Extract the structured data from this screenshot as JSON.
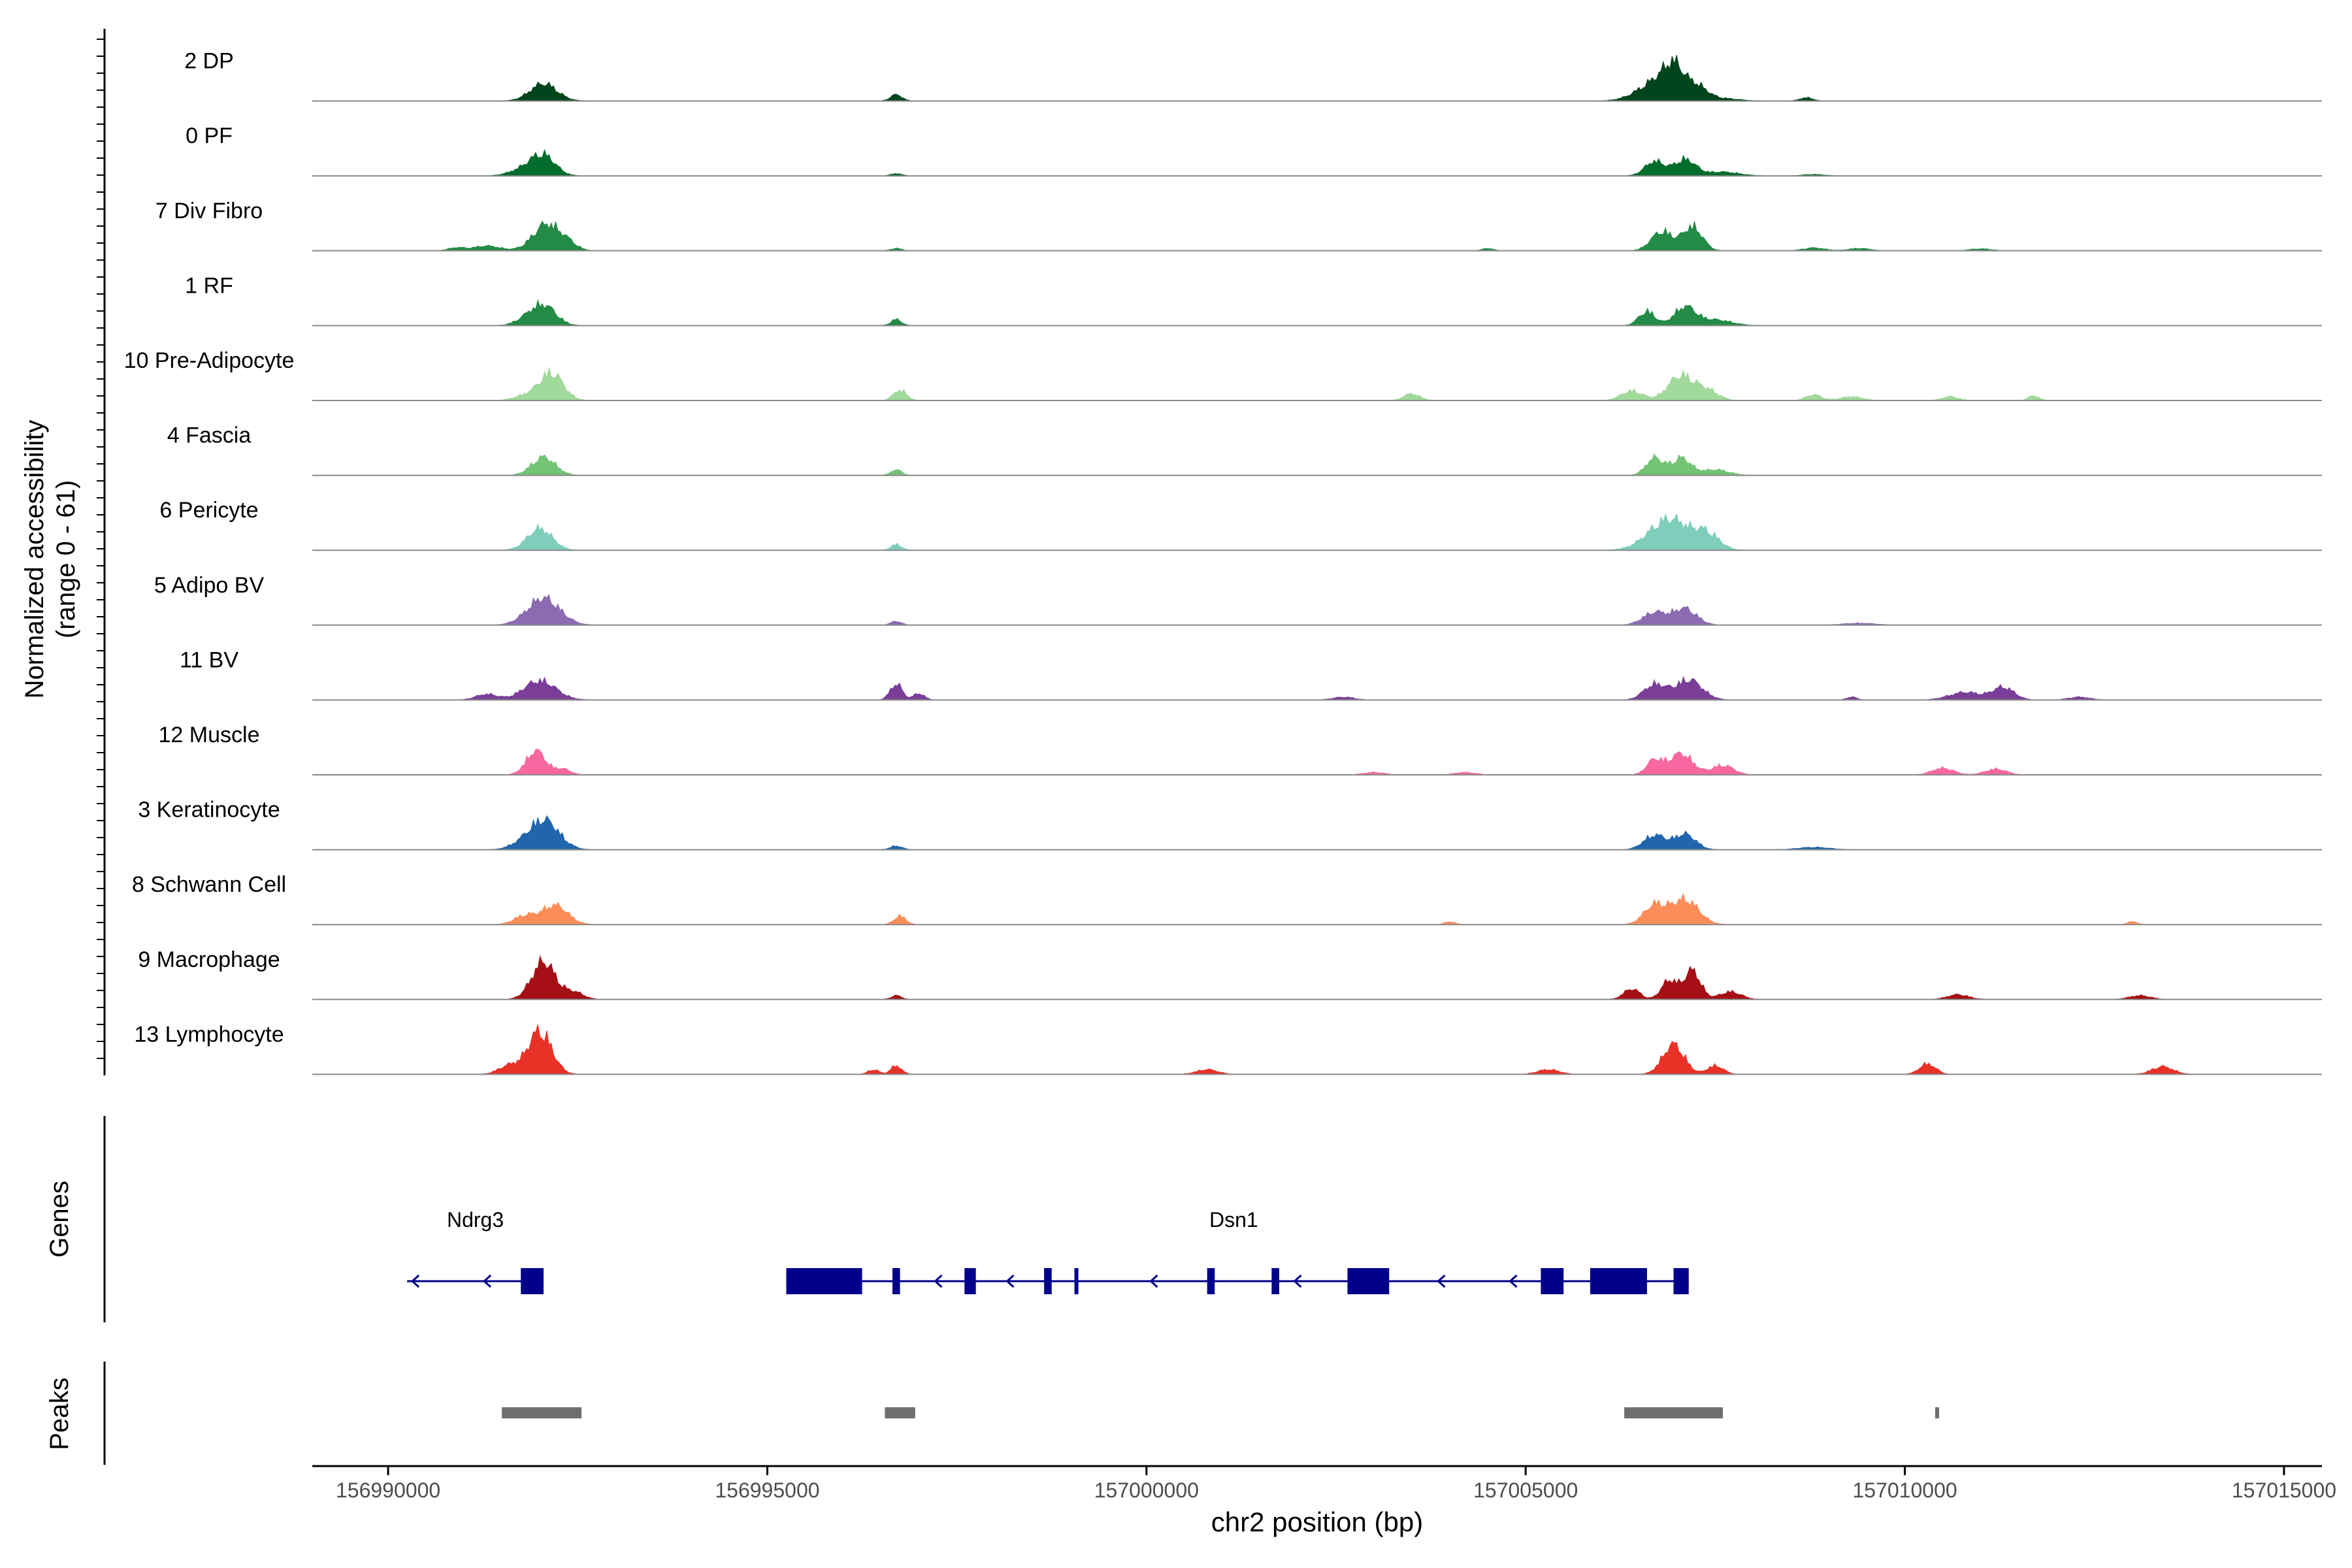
{
  "chart_data": {
    "type": "area",
    "title": "",
    "xlabel": "chr2 position (bp)",
    "ylabel": "Normalized accessibility",
    "ylabel_range": "(range 0 - 61)",
    "xlim": [
      156989000,
      157015500
    ],
    "ylim": [
      0,
      61
    ],
    "x_ticks": [
      156990000,
      156995000,
      157000000,
      157005000,
      157010000,
      157015000
    ],
    "x_tick_labels": [
      "156990000",
      "156995000",
      "157000000",
      "157005000",
      "157010000",
      "157015000"
    ],
    "series": [
      {
        "name": "2 DP",
        "color": "#00441b",
        "peaks": [
          [
            156992050,
            36,
            250
          ],
          [
            156996700,
            13,
            110
          ],
          [
            157006800,
            48,
            380
          ],
          [
            157006950,
            40,
            160
          ],
          [
            157007250,
            24,
            200
          ],
          [
            157008700,
            7,
            120
          ],
          [
            157007600,
            5,
            300
          ]
        ]
      },
      {
        "name": "0 PF",
        "color": "#006d2c",
        "peaks": [
          [
            156992050,
            40,
            220
          ],
          [
            156991800,
            14,
            260
          ],
          [
            156996700,
            5,
            100
          ],
          [
            157006700,
            30,
            180
          ],
          [
            157007100,
            34,
            200
          ],
          [
            157007600,
            8,
            300
          ],
          [
            157008800,
            3,
            200
          ]
        ]
      },
      {
        "name": "7 Div Fibro",
        "color": "#238b45",
        "peaks": [
          [
            156992100,
            56,
            260
          ],
          [
            156991300,
            10,
            250
          ],
          [
            156990900,
            6,
            150
          ],
          [
            156992400,
            9,
            150
          ],
          [
            156996700,
            5,
            100
          ],
          [
            157004500,
            5,
            100
          ],
          [
            157006800,
            40,
            200
          ],
          [
            157007200,
            50,
            180
          ],
          [
            157008800,
            6,
            200
          ],
          [
            157009400,
            5,
            200
          ],
          [
            157011000,
            4,
            200
          ]
        ]
      },
      {
        "name": "1 RF",
        "color": "#238b45",
        "peaks": [
          [
            156992050,
            42,
            230
          ],
          [
            156991800,
            10,
            200
          ],
          [
            156996700,
            13,
            100
          ],
          [
            157006600,
            30,
            150
          ],
          [
            157007100,
            38,
            200
          ],
          [
            157007500,
            12,
            300
          ]
        ]
      },
      {
        "name": "10 Pre-Adipocyte",
        "color": "#a1d99b",
        "peaks": [
          [
            156992150,
            58,
            220
          ],
          [
            156991800,
            10,
            200
          ],
          [
            156996750,
            22,
            120
          ],
          [
            157003500,
            14,
            150
          ],
          [
            157006400,
            20,
            200
          ],
          [
            157007050,
            52,
            240
          ],
          [
            157007400,
            20,
            200
          ],
          [
            157008800,
            12,
            150
          ],
          [
            157009300,
            8,
            200
          ],
          [
            157010600,
            8,
            150
          ],
          [
            157011700,
            10,
            100
          ]
        ]
      },
      {
        "name": "4 Fascia",
        "color": "#74c476",
        "peaks": [
          [
            156992050,
            38,
            220
          ],
          [
            156996700,
            12,
            100
          ],
          [
            157006700,
            36,
            160
          ],
          [
            157007050,
            36,
            180
          ],
          [
            157007500,
            12,
            250
          ]
        ]
      },
      {
        "name": "6 Pericyte",
        "color": "#7fcdbb",
        "peaks": [
          [
            156992000,
            45,
            230
          ],
          [
            156996700,
            12,
            100
          ],
          [
            157006900,
            65,
            380
          ],
          [
            157007400,
            30,
            220
          ]
        ]
      },
      {
        "name": "5 Adipo BV",
        "color": "#8c6bb1",
        "peaks": [
          [
            156992050,
            56,
            300
          ],
          [
            156996700,
            8,
            100
          ],
          [
            157006700,
            26,
            220
          ],
          [
            157007100,
            34,
            220
          ],
          [
            157009400,
            4,
            300
          ]
        ]
      },
      {
        "name": "11 BV",
        "color": "#7a3e99",
        "peaks": [
          [
            156992000,
            40,
            300
          ],
          [
            156991300,
            12,
            200
          ],
          [
            156996700,
            34,
            110
          ],
          [
            156997000,
            14,
            100
          ],
          [
            157006700,
            32,
            200
          ],
          [
            157007150,
            42,
            250
          ],
          [
            157010800,
            16,
            300
          ],
          [
            157011300,
            26,
            200
          ],
          [
            157009300,
            6,
            100
          ],
          [
            157002600,
            6,
            200
          ],
          [
            157012300,
            6,
            200
          ]
        ]
      },
      {
        "name": "12 Muscle",
        "color": "#f768a1",
        "peaks": [
          [
            156991950,
            50,
            180
          ],
          [
            156992300,
            12,
            150
          ],
          [
            157007050,
            44,
            220
          ],
          [
            157006700,
            30,
            150
          ],
          [
            157007600,
            20,
            200
          ],
          [
            157010500,
            14,
            200
          ],
          [
            157011200,
            12,
            200
          ],
          [
            157003000,
            5,
            200
          ],
          [
            157004200,
            5,
            200
          ]
        ]
      },
      {
        "name": "3 Keratinocyte",
        "color": "#2166ac",
        "peaks": [
          [
            156992050,
            62,
            280
          ],
          [
            156991700,
            6,
            200
          ],
          [
            156996700,
            8,
            110
          ],
          [
            157006700,
            30,
            200
          ],
          [
            157007100,
            32,
            200
          ],
          [
            157008800,
            5,
            300
          ]
        ]
      },
      {
        "name": "8 Schwann Cell",
        "color": "#fc8d59",
        "peaks": [
          [
            156992200,
            40,
            240
          ],
          [
            156991800,
            18,
            200
          ],
          [
            156996750,
            18,
            110
          ],
          [
            157006700,
            40,
            200
          ],
          [
            157007100,
            52,
            250
          ],
          [
            157004000,
            6,
            100
          ],
          [
            157013000,
            6,
            100
          ]
        ]
      },
      {
        "name": "9 Macrophage",
        "color": "#a50f15",
        "peaks": [
          [
            156992050,
            78,
            220
          ],
          [
            156992450,
            15,
            180
          ],
          [
            156996700,
            8,
            100
          ],
          [
            157006400,
            22,
            150
          ],
          [
            157006900,
            40,
            150
          ],
          [
            157007200,
            60,
            150
          ],
          [
            157007700,
            16,
            200
          ],
          [
            157010700,
            10,
            200
          ],
          [
            157013100,
            8,
            200
          ]
        ]
      },
      {
        "name": "13 Lymphocyte",
        "color": "#e83228",
        "peaks": [
          [
            156992000,
            90,
            220
          ],
          [
            156991600,
            18,
            200
          ],
          [
            156996700,
            18,
            100
          ],
          [
            156996400,
            10,
            100
          ],
          [
            157006950,
            62,
            200
          ],
          [
            157007500,
            18,
            150
          ],
          [
            157010300,
            22,
            150
          ],
          [
            157013400,
            16,
            200
          ],
          [
            157000800,
            10,
            200
          ],
          [
            157005300,
            10,
            200
          ]
        ]
      }
    ],
    "genes": {
      "title": "Genes",
      "items": [
        {
          "name": "Ndrg3",
          "start": 156990250,
          "end": 156992050,
          "strand": "-",
          "exons": [
            [
              156991750,
              156992050
            ]
          ]
        },
        {
          "name": "Dsn1",
          "start": 156995250,
          "end": 157007150,
          "strand": "-",
          "exons": [
            [
              156995250,
              156996250
            ],
            [
              156996650,
              156996750
            ],
            [
              156997600,
              156997750
            ],
            [
              156998650,
              156998750
            ],
            [
              156999050,
              156999100
            ],
            [
              157000800,
              157000900
            ],
            [
              157001650,
              157001750
            ],
            [
              157002650,
              157003200
            ],
            [
              157005200,
              157005500
            ],
            [
              157005850,
              157006600
            ],
            [
              157006950,
              157007150
            ]
          ]
        }
      ]
    },
    "peaks_track": {
      "title": "Peaks",
      "regions": [
        [
          156991500,
          156992550
        ],
        [
          156996550,
          156996950
        ],
        [
          157006300,
          157007600
        ],
        [
          157010400,
          157010450
        ]
      ]
    }
  }
}
